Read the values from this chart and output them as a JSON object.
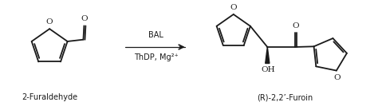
{
  "bg_color": "#ffffff",
  "label_left": "2-Furaldehyde",
  "label_right": "(R)-2,2’-Furoin",
  "arrow_label_top": "BAL",
  "arrow_label_bottom": "ThDP, Mg²⁺",
  "line_color": "#1a1a1a",
  "line_width": 1.3,
  "font_size": 7.5,
  "font_size_label": 7.0,
  "figsize": [
    4.74,
    1.38
  ],
  "dpi": 100
}
